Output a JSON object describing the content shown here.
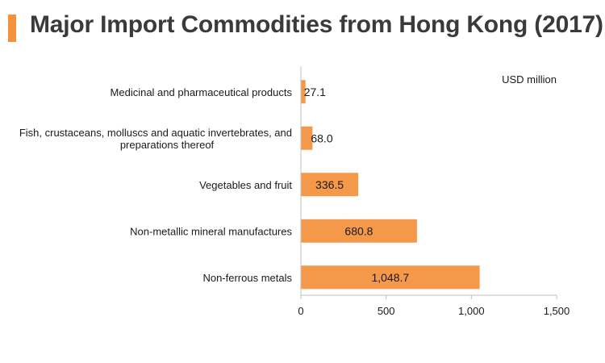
{
  "title": "Major Import Commodities from Hong Kong (2017)",
  "colors": {
    "accent": "#f4913b",
    "bar": "#f4984a",
    "axis": "#bfbfbf"
  },
  "chart_data": {
    "type": "bar",
    "orientation": "horizontal",
    "unit": "USD million",
    "categories": [
      [
        "Medicinal and pharmaceutical products"
      ],
      [
        "Fish, crustaceans, molluscs and aquatic invertebrates, and",
        "preparations thereof"
      ],
      [
        "Vegetables and fruit"
      ],
      [
        "Non-metallic mineral manufactures"
      ],
      [
        "Non-ferrous metals"
      ]
    ],
    "values": [
      27.1,
      68.0,
      336.5,
      680.8,
      1048.7
    ],
    "value_labels": [
      "27.1",
      "68.0",
      "336.5",
      "680.8",
      "1,048.7"
    ],
    "xlim": [
      0,
      1500
    ],
    "xticks": [
      0,
      500,
      1000,
      1500
    ],
    "xtick_labels": [
      "0",
      "500",
      "1,000",
      "1,500"
    ],
    "grid": false,
    "legend": "none"
  }
}
